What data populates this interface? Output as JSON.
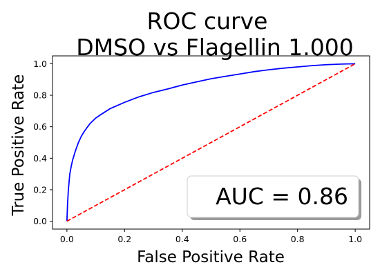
{
  "chart_data": {
    "type": "line",
    "title": "ROC curve",
    "subtitle": "DMSO vs Flagellin 1.000",
    "xlabel": "False Positive Rate",
    "ylabel": "True Positive Rate",
    "xlim": [
      -0.05,
      1.05
    ],
    "ylim": [
      -0.05,
      1.05
    ],
    "x_ticks": [
      "0.0",
      "0.2",
      "0.4",
      "0.6",
      "0.8",
      "1.0"
    ],
    "y_ticks": [
      "0.0",
      "0.2",
      "0.4",
      "0.6",
      "0.8",
      "1.0"
    ],
    "grid": false,
    "series": [
      {
        "color": "#0000ff",
        "style": "solid",
        "x": [
          0.0,
          0.002,
          0.005,
          0.01,
          0.015,
          0.02,
          0.03,
          0.04,
          0.05,
          0.06,
          0.08,
          0.1,
          0.12,
          0.15,
          0.2,
          0.25,
          0.3,
          0.35,
          0.4,
          0.45,
          0.5,
          0.55,
          0.6,
          0.65,
          0.7,
          0.75,
          0.8,
          0.85,
          0.9,
          0.95,
          1.0
        ],
        "y": [
          0.0,
          0.1,
          0.2,
          0.3,
          0.35,
          0.39,
          0.45,
          0.5,
          0.54,
          0.57,
          0.62,
          0.655,
          0.68,
          0.715,
          0.755,
          0.79,
          0.818,
          0.84,
          0.865,
          0.885,
          0.905,
          0.92,
          0.935,
          0.95,
          0.962,
          0.972,
          0.98,
          0.988,
          0.994,
          0.998,
          1.0
        ]
      },
      {
        "color": "#ff0000",
        "style": "dashed",
        "x": [
          0.0,
          1.0
        ],
        "y": [
          0.0,
          1.0
        ]
      }
    ],
    "annotation": {
      "text": "AUC = 0.86",
      "placement": "lower-right"
    }
  }
}
